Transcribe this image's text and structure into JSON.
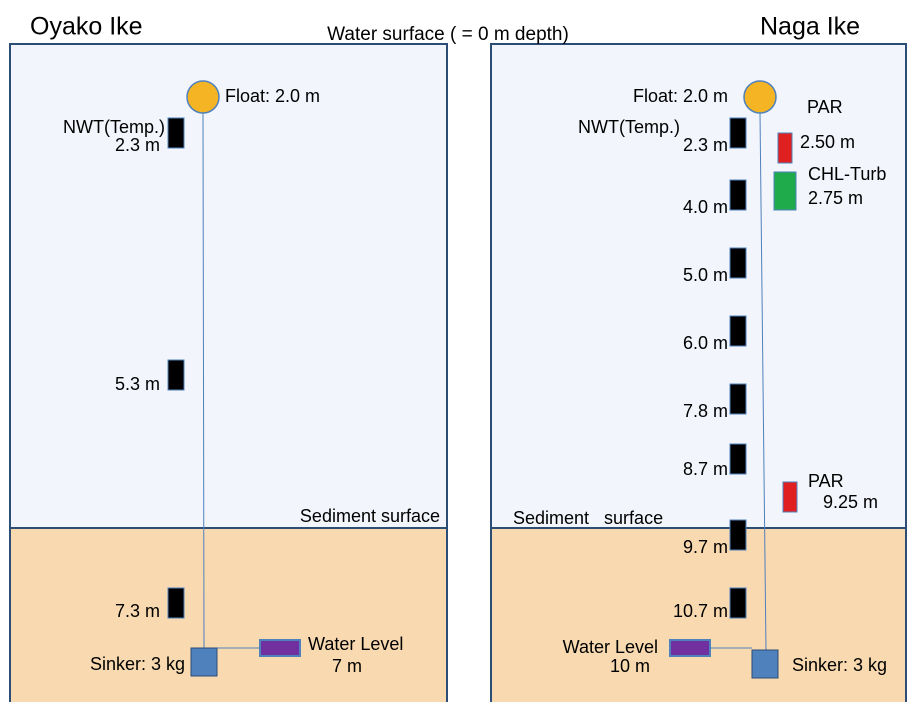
{
  "header": {
    "water_surface": "Water surface ( = 0 m depth)"
  },
  "left": {
    "title": "Oyako Ike",
    "float": "Float: 2.0 m",
    "sensor_type": "NWT(Temp.)",
    "sensors": [
      "2.3 m",
      "5.3 m",
      "7.3 m"
    ],
    "sediment": "Sediment surface",
    "sinker": "Sinker: 3 kg",
    "water_level": "Water Level",
    "water_level_depth": "7 m"
  },
  "right": {
    "title": "Naga Ike",
    "float": "Float: 2.0 m",
    "sensor_type": "NWT(Temp.)",
    "sensors": [
      "2.3 m",
      "4.0 m",
      "5.0 m",
      "6.0 m",
      "7.8 m",
      "8.7 m",
      "9.7 m",
      "10.7 m"
    ],
    "par_top": "PAR",
    "par_top_depth": "2.50 m",
    "chl": "CHL-Turb",
    "chl_depth": "2.75 m",
    "par_bottom": "PAR",
    "par_bottom_depth": "9.25 m",
    "sediment": "Sediment   surface",
    "sinker": "Sinker: 3 kg",
    "water_level": "Water Level",
    "water_level_depth": "10 m"
  }
}
